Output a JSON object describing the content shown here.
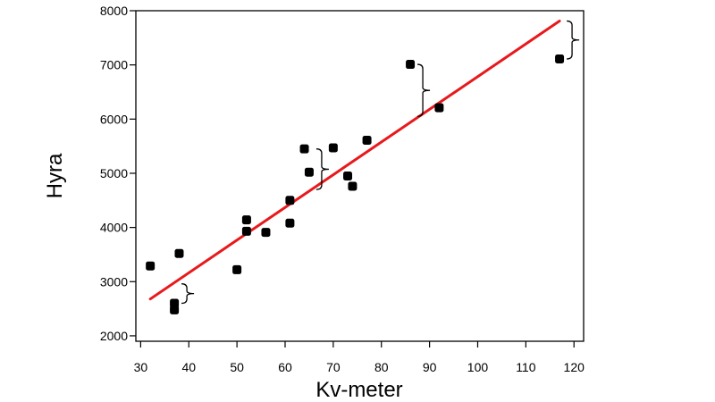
{
  "chart_data": {
    "type": "scatter",
    "xlabel": "Kv-meter",
    "ylabel": "Hyra",
    "xlim": [
      29,
      122
    ],
    "ylim": [
      1900,
      8000
    ],
    "xticks": [
      30,
      40,
      50,
      60,
      70,
      80,
      90,
      100,
      110,
      120
    ],
    "yticks": [
      2000,
      3000,
      4000,
      5000,
      6000,
      7000,
      8000
    ],
    "grid": false,
    "point_color": "#000000",
    "series": [
      {
        "points": [
          {
            "x": 32,
            "y": 3290
          },
          {
            "x": 37,
            "y": 2600
          },
          {
            "x": 37,
            "y": 2480
          },
          {
            "x": 38,
            "y": 3520
          },
          {
            "x": 50,
            "y": 3220
          },
          {
            "x": 52,
            "y": 4140
          },
          {
            "x": 52,
            "y": 3930
          },
          {
            "x": 56,
            "y": 3910
          },
          {
            "x": 61,
            "y": 4500
          },
          {
            "x": 61,
            "y": 4080
          },
          {
            "x": 64,
            "y": 5450
          },
          {
            "x": 65,
            "y": 5020
          },
          {
            "x": 70,
            "y": 5470
          },
          {
            "x": 73,
            "y": 4950
          },
          {
            "x": 74,
            "y": 4760
          },
          {
            "x": 77,
            "y": 5610
          },
          {
            "x": 86,
            "y": 7010
          },
          {
            "x": 92,
            "y": 6210
          },
          {
            "x": 117,
            "y": 7110
          }
        ]
      }
    ],
    "fit_line": {
      "x": [
        32,
        117
      ],
      "y": [
        2680,
        7810
      ],
      "color": "#e8191c"
    },
    "residual_braces": [
      {
        "x": 37,
        "y_low": 2600,
        "y_high": 2960
      },
      {
        "x": 65,
        "y_low": 4700,
        "y_high": 5450
      },
      {
        "x": 86,
        "y_low": 6050,
        "y_high": 7010
      },
      {
        "x": 117,
        "y_low": 7110,
        "y_high": 7810
      }
    ]
  }
}
